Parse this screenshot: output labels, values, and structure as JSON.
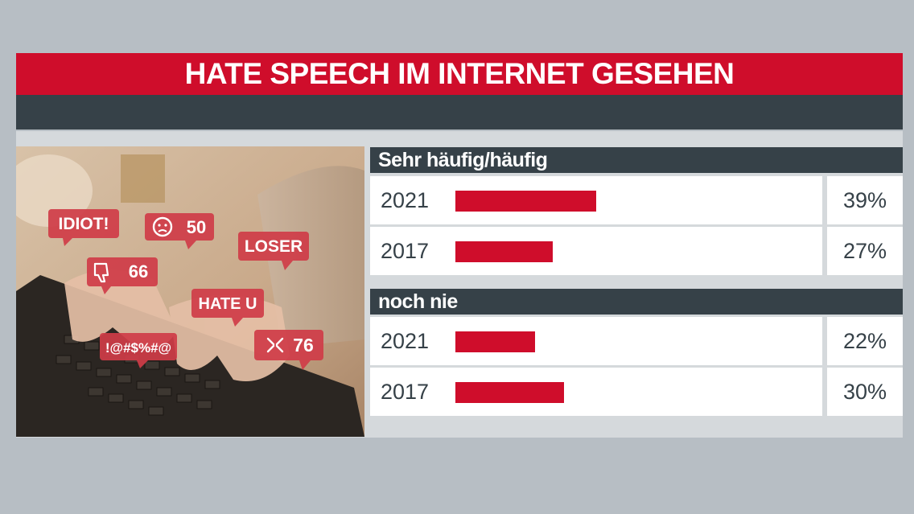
{
  "header": {
    "title": "HATE SPEECH IM INTERNET GESEHEN"
  },
  "image": {
    "bubbles": {
      "idiot": "IDIOT!",
      "angry_count": "50",
      "loser": "LOSER",
      "thumbs_count": "66",
      "hate_u": "HATE U",
      "symbols": "!@#$%#@",
      "x_count": "76"
    }
  },
  "colors": {
    "accent": "#cf0d2b",
    "dark": "#364148",
    "background": "#b7bec4"
  },
  "chart_data": {
    "type": "bar",
    "title": "HATE SPEECH IM INTERNET GESEHEN",
    "unit": "%",
    "xlim": [
      0,
      80
    ],
    "groups": [
      {
        "label": "Sehr häufig/häufig",
        "rows": [
          {
            "year": "2021",
            "value": 39,
            "label": "39%"
          },
          {
            "year": "2017",
            "value": 27,
            "label": "27%"
          }
        ]
      },
      {
        "label": "noch nie",
        "rows": [
          {
            "year": "2021",
            "value": 22,
            "label": "22%"
          },
          {
            "year": "2017",
            "value": 30,
            "label": "30%"
          }
        ]
      }
    ]
  }
}
